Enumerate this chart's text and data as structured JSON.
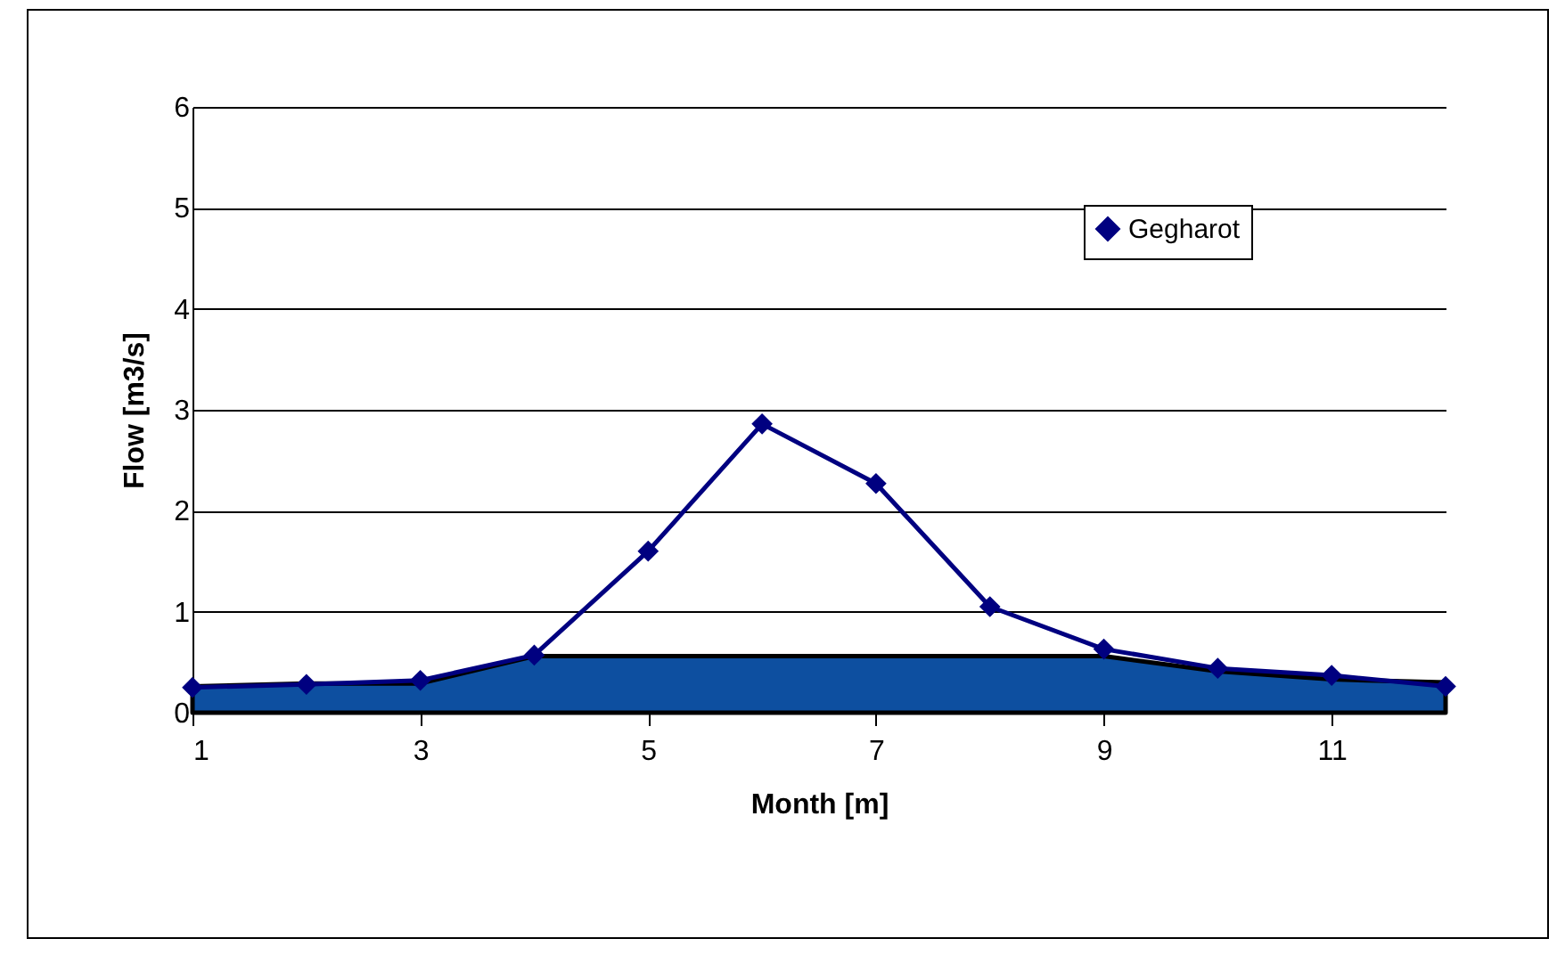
{
  "chart_data": {
    "type": "line",
    "xlabel": "Month [m]",
    "ylabel": "Flow [m3/s]",
    "x": [
      1,
      2,
      3,
      4,
      5,
      6,
      7,
      8,
      9,
      10,
      11,
      12
    ],
    "series": [
      {
        "type": "area",
        "color": "#0d4fa0",
        "values": [
          0.26,
          0.29,
          0.29,
          0.56,
          0.56,
          0.56,
          0.56,
          0.56,
          0.56,
          0.41,
          0.33,
          0.3
        ]
      },
      {
        "name": "Gegharot",
        "color": "#000080",
        "marker": "diamond",
        "values": [
          0.25,
          0.28,
          0.32,
          0.57,
          1.6,
          2.86,
          2.27,
          1.05,
          0.63,
          0.44,
          0.37,
          0.26
        ]
      }
    ],
    "xlim": [
      1,
      12
    ],
    "xticks": [
      1,
      3,
      5,
      7,
      9,
      11
    ],
    "ylim": [
      0,
      6
    ],
    "yticks": [
      0,
      1,
      2,
      3,
      4,
      5,
      6
    ],
    "grid": "y",
    "legend": "top right"
  }
}
